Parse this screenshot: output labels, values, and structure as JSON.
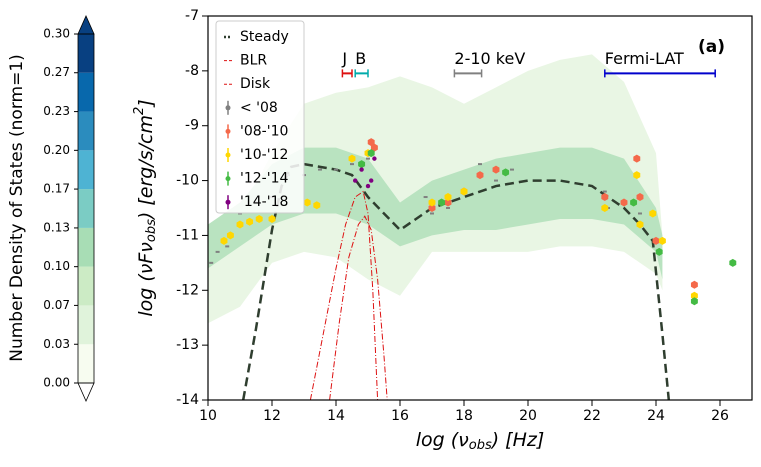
{
  "chart_data": {
    "type": "scatter",
    "xlabel": [
      "log (ν",
      "obs",
      ")  [Hz]"
    ],
    "ylabel": [
      "log (νFν",
      "obs",
      ")  [erg/s/cm",
      "2",
      "]"
    ],
    "xlim": [
      10,
      27
    ],
    "xticks": [
      10,
      12,
      14,
      16,
      18,
      20,
      22,
      24,
      26
    ],
    "ylim": [
      -14,
      -7
    ],
    "yticks": [
      -14,
      -13,
      -12,
      -11,
      -10,
      -9,
      -8,
      -7
    ],
    "panel_label": "(a)",
    "colorbar": {
      "label": "Number Density of States (norm=1)",
      "lim": [
        0,
        0.3
      ],
      "ticks": [
        {
          "value": 0,
          "label": "0.00"
        },
        {
          "value": 0.0333,
          "label": "0.03"
        },
        {
          "value": 0.0667,
          "label": "0.07"
        },
        {
          "value": 0.1,
          "label": "0.10"
        },
        {
          "value": 0.1333,
          "label": "0.13"
        },
        {
          "value": 0.1667,
          "label": "0.17"
        },
        {
          "value": 0.2,
          "label": "0.20"
        },
        {
          "value": 0.2333,
          "label": "0.23"
        },
        {
          "value": 0.2667,
          "label": "0.27"
        },
        {
          "value": 0.3,
          "label": "0.30"
        }
      ],
      "colors": [
        "#f7fcf0",
        "#e0f3db",
        "#ccebc5",
        "#a8ddb5",
        "#7bccc4",
        "#4eb3d3",
        "#2b8cbe",
        "#0868ac",
        "#084081"
      ]
    },
    "bands": [
      {
        "color": "#e9f6e4",
        "x": [
          10,
          11,
          12,
          13,
          14,
          15,
          16,
          17,
          18,
          19,
          20,
          21,
          22,
          23,
          24,
          24.2
        ],
        "high": [
          -11.3,
          -10.6,
          -9.5,
          -8.6,
          -8.4,
          -8.3,
          -8.1,
          -8.3,
          -8.6,
          -8.3,
          -8.0,
          -7.8,
          -7.7,
          -8.2,
          -9.5,
          -11
        ],
        "low": [
          -12.6,
          -12.3,
          -11.5,
          -11.3,
          -11.4,
          -11.8,
          -12.1,
          -11.3,
          -11.3,
          -11.3,
          -11.3,
          -11.2,
          -11.2,
          -11.3,
          -11.7,
          -12
        ]
      },
      {
        "color": "#b9e3c0",
        "x": [
          10,
          11,
          12,
          13,
          14,
          15,
          16,
          17,
          18,
          19,
          20,
          21,
          22,
          23,
          24,
          24.2
        ],
        "high": [
          -10.8,
          -10.4,
          -9.7,
          -9.4,
          -9.4,
          -9.6,
          -10.4,
          -10,
          -9.8,
          -9.6,
          -9.5,
          -9.4,
          -9.4,
          -9.6,
          -10.5,
          -11
        ],
        "low": [
          -11.6,
          -11.2,
          -10.8,
          -10.6,
          -10.6,
          -10.8,
          -11.2,
          -11,
          -10.9,
          -10.9,
          -10.8,
          -10.7,
          -10.7,
          -10.8,
          -11.3,
          -11.8
        ]
      }
    ],
    "lines": [
      {
        "name": "Steady",
        "color": "#2f3e2f",
        "dash": "9,5",
        "x": [
          11.1,
          11.5,
          12,
          12.3,
          12.6,
          13,
          14,
          14.5,
          15,
          16,
          17,
          18,
          19,
          20,
          21,
          22,
          23,
          23.5,
          23.9,
          24.2,
          24.4
        ],
        "values": [
          -14,
          -12.7,
          -10.9,
          -10.1,
          -9.75,
          -9.7,
          -9.8,
          -9.9,
          -10.3,
          -10.9,
          -10.5,
          -10.3,
          -10.1,
          -10,
          -10,
          -10.1,
          -10.5,
          -10.8,
          -11.1,
          -12.8,
          -14
        ]
      },
      {
        "name": "BLR",
        "color": "#dd1111",
        "dash": "6,2,1,2",
        "x": [
          13.2,
          13.6,
          14,
          14.3,
          14.6,
          14.85,
          15.0,
          15.15,
          15.3
        ],
        "values": [
          -14,
          -12.8,
          -11.6,
          -10.8,
          -10.3,
          -10.2,
          -10.6,
          -12,
          -14
        ]
      },
      {
        "name": "Disk",
        "color": "#dd1111",
        "dash": "6,2,1,2",
        "x": [
          13.8,
          14.1,
          14.4,
          14.7,
          14.9,
          15.1,
          15.3,
          15.5,
          15.6
        ],
        "values": [
          -14,
          -12.6,
          -11.4,
          -10.8,
          -10.65,
          -10.9,
          -11.8,
          -13.2,
          -14
        ]
      }
    ],
    "series": [
      {
        "name": "< '08",
        "color": "#808080",
        "x": [
          10.1,
          10.3,
          10.6,
          11,
          11.5,
          12,
          12.5,
          13,
          13.5,
          14,
          14.5,
          15,
          16.8,
          17,
          17.5,
          18,
          18.5,
          19,
          19.5,
          22.4,
          22.5,
          23.3,
          23.5
        ],
        "values": [
          -11.5,
          -11.3,
          -11.2,
          -10.6,
          -10.4,
          -10.3,
          -9.9,
          -9.9,
          -9.8,
          -9.8,
          -9.7,
          -9.6,
          -10.3,
          -10.6,
          -10.5,
          -10.2,
          -9.7,
          -10,
          -9.8,
          -10.2,
          -10.5,
          -10.4,
          -10.6
        ]
      },
      {
        "name": "'08-'10",
        "color": "#f4694a",
        "x": [
          15.1,
          15.2,
          17,
          17.5,
          18,
          18.5,
          19,
          22.4,
          23,
          23.4,
          23.5,
          24,
          25.2
        ],
        "values": [
          -9.3,
          -9.4,
          -10.5,
          -10.4,
          -10.2,
          -9.9,
          -9.8,
          -10.3,
          -10.4,
          -9.6,
          -10.3,
          -11.1,
          -11.9
        ]
      },
      {
        "name": "'10-'12",
        "color": "#ffd700",
        "x": [
          10.5,
          10.7,
          11,
          11.3,
          11.6,
          12,
          13.1,
          13.4,
          14.5,
          15,
          17,
          17.5,
          18,
          22.4,
          23.4,
          23.5,
          23.9,
          24.2,
          25.2
        ],
        "values": [
          -11.1,
          -11,
          -10.8,
          -10.75,
          -10.7,
          -10.7,
          -10.4,
          -10.45,
          -9.6,
          -9.5,
          -10.4,
          -10.3,
          -10.2,
          -10.5,
          -9.9,
          -10.8,
          -10.6,
          -11.1,
          -12.1
        ]
      },
      {
        "name": "'12-'14",
        "color": "#44bb44",
        "x": [
          14.8,
          15.1,
          17.3,
          19.3,
          23.3,
          24.1,
          25.2,
          26.4
        ],
        "values": [
          -9.7,
          -9.5,
          -10.4,
          -9.85,
          -10.4,
          -11.3,
          -12.2,
          -11.5
        ]
      },
      {
        "name": "'14-'18",
        "color": "#800080",
        "x": [
          14.6,
          14.8,
          15,
          15.1,
          15.2
        ],
        "values": [
          -10,
          -9.8,
          -10.1,
          -10.0,
          -9.6
        ]
      }
    ],
    "ranges": [
      {
        "label": "J",
        "color": "#dd1111",
        "x": [
          14.2,
          14.5
        ],
        "y": -7.9
      },
      {
        "label": "B",
        "color": "#00aaaa",
        "x": [
          14.6,
          15.0
        ],
        "y": -7.9
      },
      {
        "label": "2-10 keV",
        "color": "#808080",
        "x": [
          17.7,
          18.55
        ],
        "y": -7.9
      },
      {
        "label": "Fermi-LAT",
        "color": "#0000cc",
        "x": [
          22.4,
          25.85
        ],
        "y": -7.9
      }
    ]
  }
}
